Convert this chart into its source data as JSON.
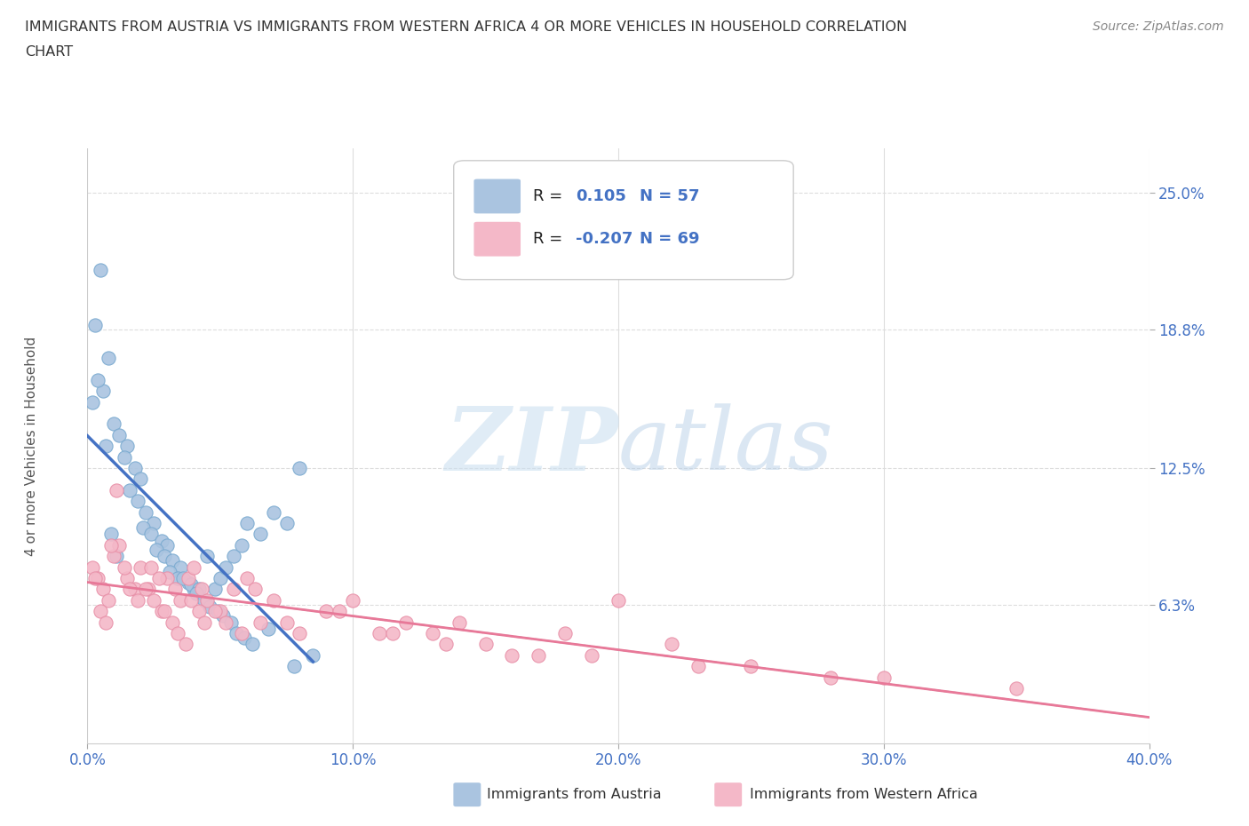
{
  "title_line1": "IMMIGRANTS FROM AUSTRIA VS IMMIGRANTS FROM WESTERN AFRICA 4 OR MORE VEHICLES IN HOUSEHOLD CORRELATION",
  "title_line2": "CHART",
  "source": "Source: ZipAtlas.com",
  "ylabel": "4 or more Vehicles in Household",
  "xmin": 0.0,
  "xmax": 40.0,
  "ymin": 0.0,
  "ymax": 27.0,
  "ytick_vals": [
    6.3,
    12.5,
    18.8,
    25.0
  ],
  "ytick_labels": [
    "6.3%",
    "12.5%",
    "18.8%",
    "25.0%"
  ],
  "xtick_vals": [
    0.0,
    10.0,
    20.0,
    30.0,
    40.0
  ],
  "xtick_labels": [
    "0.0%",
    "10.0%",
    "20.0%",
    "30.0%",
    "40.0%"
  ],
  "austria_color": "#aac4e0",
  "austria_edge_color": "#7aaad0",
  "austria_line_color": "#4472c4",
  "western_africa_color": "#f4b8c8",
  "western_africa_edge_color": "#e890a8",
  "western_africa_line_color": "#e87898",
  "trend_dash_color": "#bbbbbb",
  "r_austria": 0.105,
  "n_austria": 57,
  "r_western_africa": -0.207,
  "n_western_africa": 69,
  "austria_scatter_x": [
    0.5,
    0.3,
    0.8,
    0.6,
    1.0,
    1.2,
    1.5,
    1.4,
    1.8,
    2.0,
    1.6,
    1.9,
    2.2,
    2.5,
    2.1,
    2.4,
    2.8,
    3.0,
    2.6,
    2.9,
    3.2,
    3.5,
    3.1,
    3.4,
    3.8,
    4.0,
    3.6,
    3.9,
    4.2,
    4.5,
    4.1,
    4.4,
    4.8,
    5.0,
    4.6,
    4.9,
    5.2,
    5.5,
    5.1,
    5.4,
    5.8,
    6.0,
    5.6,
    5.9,
    6.5,
    7.0,
    6.2,
    6.8,
    7.5,
    7.8,
    8.0,
    8.5,
    0.2,
    0.4,
    0.7,
    0.9,
    1.1
  ],
  "austria_scatter_y": [
    21.5,
    19.0,
    17.5,
    16.0,
    14.5,
    14.0,
    13.5,
    13.0,
    12.5,
    12.0,
    11.5,
    11.0,
    10.5,
    10.0,
    9.8,
    9.5,
    9.2,
    9.0,
    8.8,
    8.5,
    8.3,
    8.0,
    7.8,
    7.5,
    7.3,
    7.0,
    7.5,
    7.2,
    7.0,
    8.5,
    6.8,
    6.5,
    7.0,
    7.5,
    6.2,
    6.0,
    8.0,
    8.5,
    5.8,
    5.5,
    9.0,
    10.0,
    5.0,
    4.8,
    9.5,
    10.5,
    4.5,
    5.2,
    10.0,
    3.5,
    12.5,
    4.0,
    15.5,
    16.5,
    13.5,
    9.5,
    8.5
  ],
  "western_africa_scatter_x": [
    0.2,
    0.4,
    0.6,
    0.8,
    1.0,
    1.2,
    1.5,
    1.8,
    2.0,
    2.3,
    2.5,
    2.8,
    3.0,
    3.3,
    3.5,
    3.8,
    4.0,
    4.3,
    4.5,
    5.0,
    5.5,
    6.0,
    6.5,
    7.0,
    8.0,
    9.0,
    10.0,
    11.0,
    12.0,
    13.0,
    14.0,
    15.0,
    17.0,
    18.0,
    20.0,
    22.0,
    25.0,
    30.0,
    35.0,
    0.3,
    0.5,
    0.7,
    0.9,
    1.1,
    1.4,
    1.6,
    1.9,
    2.2,
    2.4,
    2.7,
    2.9,
    3.2,
    3.4,
    3.7,
    3.9,
    4.2,
    4.4,
    4.8,
    5.2,
    5.8,
    6.3,
    7.5,
    9.5,
    11.5,
    13.5,
    16.0,
    19.0,
    23.0,
    28.0
  ],
  "western_africa_scatter_y": [
    8.0,
    7.5,
    7.0,
    6.5,
    8.5,
    9.0,
    7.5,
    7.0,
    8.0,
    7.0,
    6.5,
    6.0,
    7.5,
    7.0,
    6.5,
    7.5,
    8.0,
    7.0,
    6.5,
    6.0,
    7.0,
    7.5,
    5.5,
    6.5,
    5.0,
    6.0,
    6.5,
    5.0,
    5.5,
    5.0,
    5.5,
    4.5,
    4.0,
    5.0,
    6.5,
    4.5,
    3.5,
    3.0,
    2.5,
    7.5,
    6.0,
    5.5,
    9.0,
    11.5,
    8.0,
    7.0,
    6.5,
    7.0,
    8.0,
    7.5,
    6.0,
    5.5,
    5.0,
    4.5,
    6.5,
    6.0,
    5.5,
    6.0,
    5.5,
    5.0,
    7.0,
    5.5,
    6.0,
    5.0,
    4.5,
    4.0,
    4.0,
    3.5,
    3.0
  ],
  "watermark_zip": "ZIP",
  "watermark_atlas": "atlas",
  "background_color": "#ffffff",
  "grid_color": "#dddddd",
  "tick_color": "#4472c4",
  "legend_label1": "Immigrants from Austria",
  "legend_label2": "Immigrants from Western Africa"
}
